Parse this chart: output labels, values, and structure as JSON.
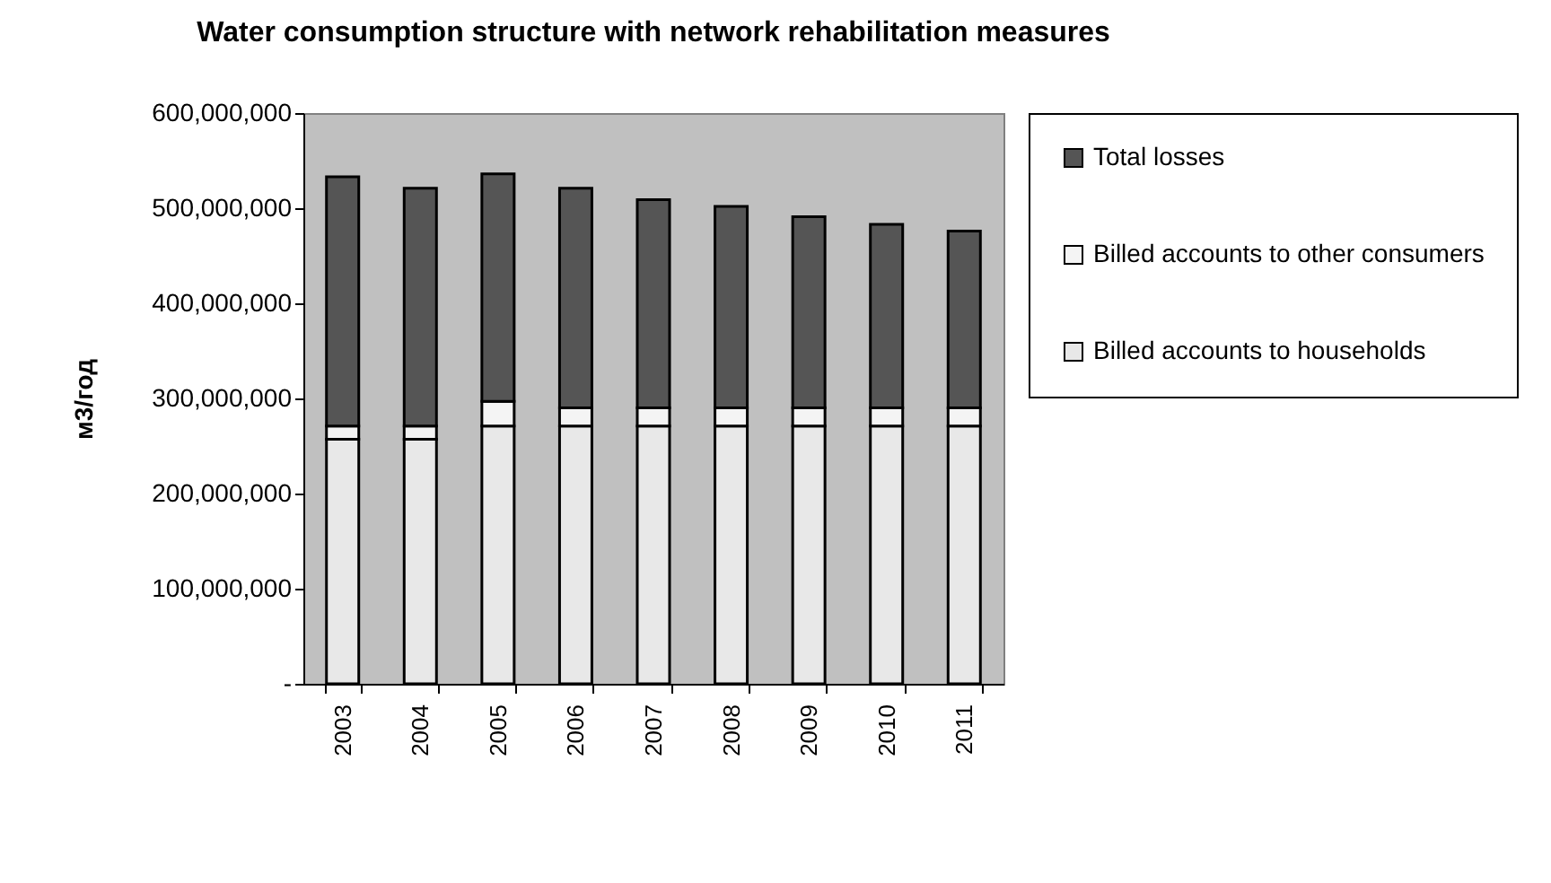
{
  "chart_data": {
    "type": "bar",
    "title": "Water consumption structure with network rehabilitation measures",
    "ylabel": "м3/год",
    "stacked": true,
    "legend": "right",
    "grid": false,
    "categories": [
      "2003",
      "2004",
      "2005",
      "2006",
      "2007",
      "2008",
      "2009",
      "2010",
      "2011"
    ],
    "ylim": [
      0,
      600000000
    ],
    "yticks": [
      {
        "value": 0,
        "label": "-"
      },
      {
        "value": 100000000,
        "label": "100,000,000"
      },
      {
        "value": 200000000,
        "label": "200,000,000"
      },
      {
        "value": 300000000,
        "label": "300,000,000"
      },
      {
        "value": 400000000,
        "label": "400,000,000"
      },
      {
        "value": 500000000,
        "label": "500,000,000"
      },
      {
        "value": 600000000,
        "label": "600,000,000"
      }
    ],
    "series": [
      {
        "name": "Billed accounts to households",
        "color": "#e8e8e8",
        "values": [
          257000000,
          257000000,
          271000000,
          271000000,
          271000000,
          271000000,
          271000000,
          271000000,
          271000000
        ]
      },
      {
        "name": "Billed accounts to other consumers",
        "color": "#f4f4f4",
        "values": [
          14000000,
          14000000,
          26000000,
          19000000,
          19000000,
          19000000,
          19000000,
          19000000,
          19000000
        ]
      },
      {
        "name": "Total losses",
        "color": "#555555",
        "values": [
          262000000,
          250000000,
          239000000,
          231000000,
          219000000,
          212000000,
          201000000,
          193000000,
          186000000
        ]
      }
    ]
  }
}
